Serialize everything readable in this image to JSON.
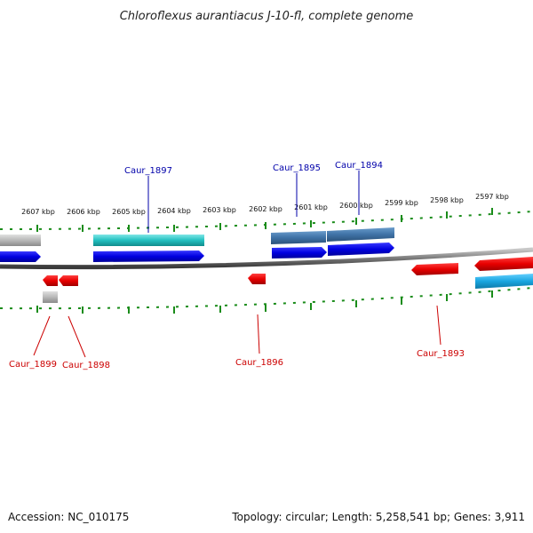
{
  "title": "Chloroflexus aurantiacus J-10-fl, complete genome",
  "footer": {
    "accession": "Accession: NC_010175",
    "summary": "Topology: circular; Length: 5,258,541 bp; Genes: 3,911"
  },
  "ticks": [
    {
      "label": "2607 kbp",
      "name": "tick-2607"
    },
    {
      "label": "2606 kbp",
      "name": "tick-2606"
    },
    {
      "label": "2605 kbp",
      "name": "tick-2605"
    },
    {
      "label": "2604 kbp",
      "name": "tick-2604"
    },
    {
      "label": "2603 kbp",
      "name": "tick-2603"
    },
    {
      "label": "2602 kbp",
      "name": "tick-2602"
    },
    {
      "label": "2601 kbp",
      "name": "tick-2601"
    },
    {
      "label": "2600 kbp",
      "name": "tick-2600"
    },
    {
      "label": "2599 kbp",
      "name": "tick-2599"
    },
    {
      "label": "2598 kbp",
      "name": "tick-2598"
    },
    {
      "label": "2597 kbp",
      "name": "tick-2597"
    }
  ],
  "gene_labels_top": [
    {
      "text": "Caur_1897"
    },
    {
      "text": "Caur_1895"
    },
    {
      "text": "Caur_1894"
    }
  ],
  "gene_labels_bottom": [
    {
      "text": "Caur_1899"
    },
    {
      "text": "Caur_1898"
    },
    {
      "text": "Caur_1896"
    },
    {
      "text": "Caur_1893"
    }
  ],
  "colors": {
    "forward_gene": "#0000ee",
    "reverse_gene": "#ee0000",
    "feature_cyan": "#2bbfbf",
    "feature_steel": "#4a7fb0",
    "feature_gray": "#b8b8b8",
    "feature_sky": "#1aa6e0",
    "tick_green": "#1a8c1a",
    "backbone": "#8a8a8a"
  }
}
